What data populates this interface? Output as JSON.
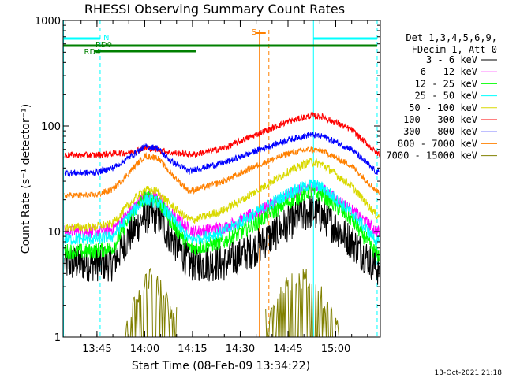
{
  "chart_data": {
    "type": "line",
    "title": "RHESSI Observing Summary Count Rates",
    "xlabel": "Start Time (08-Feb-09 13:34:22)",
    "ylabel": "Count Rate (s⁻¹ detector⁻¹)",
    "y_scale": "log",
    "ylim": [
      1,
      1000
    ],
    "xlim": [
      "13:34:22",
      "15:14:00"
    ],
    "x_ticks": [
      "13:45",
      "14:00",
      "14:15",
      "14:30",
      "14:45",
      "15:00"
    ],
    "y_ticks": [
      "1",
      "10",
      "100",
      "1000"
    ],
    "legend_header": [
      "Det 1,3,4,5,6,9,",
      "FDecim 1, Att 0"
    ],
    "legend_position": "right",
    "series": [
      {
        "name": "3 - 6 keV",
        "color": "#000000",
        "x": [
          "13:34",
          "13:44",
          "13:50",
          "13:55",
          "14:00",
          "14:04",
          "14:08",
          "14:14",
          "14:16",
          "14:25",
          "14:35",
          "14:45",
          "14:52",
          "14:56",
          "15:05",
          "15:13"
        ],
        "values": [
          5,
          5,
          5,
          9,
          14,
          14,
          9,
          5,
          5,
          5,
          7,
          12,
          15.5,
          14,
          8,
          4.5
        ]
      },
      {
        "name": "6 - 12 keV",
        "color": "#ff00ff",
        "x": [
          "13:34",
          "13:44",
          "13:50",
          "13:55",
          "14:00",
          "14:04",
          "14:08",
          "14:14",
          "14:16",
          "14:25",
          "14:35",
          "14:45",
          "14:52",
          "14:56",
          "15:05",
          "15:13"
        ],
        "values": [
          10,
          10,
          10.5,
          15,
          22,
          21,
          15,
          10.5,
          10,
          11,
          15,
          22,
          27,
          25,
          16,
          10
        ]
      },
      {
        "name": "12 - 25 keV",
        "color": "#00ff00",
        "x": [
          "13:34",
          "13:44",
          "13:50",
          "13:55",
          "14:00",
          "14:04",
          "14:08",
          "14:14",
          "14:16",
          "14:25",
          "14:35",
          "14:45",
          "14:52",
          "14:56",
          "15:05",
          "15:13"
        ],
        "values": [
          6.5,
          6.5,
          7,
          13,
          21,
          20,
          13,
          7,
          7,
          8,
          12,
          19,
          24,
          22,
          13,
          6
        ]
      },
      {
        "name": "25 - 50 keV",
        "color": "#00ffff",
        "x": [
          "13:34",
          "13:44",
          "13:50",
          "13:55",
          "14:00",
          "14:04",
          "14:08",
          "14:14",
          "14:16",
          "14:25",
          "14:35",
          "14:45",
          "14:52",
          "14:56",
          "15:05",
          "15:13"
        ],
        "values": [
          8.5,
          8.5,
          9,
          14,
          20,
          19,
          14,
          8.5,
          8.5,
          10,
          15,
          23,
          28,
          26,
          15,
          8
        ]
      },
      {
        "name": "50 - 100 keV",
        "color": "#d9d900",
        "x": [
          "13:34",
          "13:44",
          "13:50",
          "13:55",
          "14:00",
          "14:04",
          "14:08",
          "14:14",
          "14:16",
          "14:25",
          "14:35",
          "14:45",
          "14:52",
          "14:56",
          "15:05",
          "15:13"
        ],
        "values": [
          11,
          11,
          12,
          18,
          25,
          24,
          18,
          13,
          13,
          16,
          24,
          37,
          46,
          43,
          27,
          14
        ]
      },
      {
        "name": "100 - 300 keV",
        "color": "#ff0000",
        "x": [
          "13:34",
          "13:44",
          "13:50",
          "13:55",
          "14:00",
          "14:04",
          "14:08",
          "14:14",
          "14:16",
          "14:25",
          "14:35",
          "14:45",
          "14:52",
          "14:56",
          "15:05",
          "15:13"
        ],
        "values": [
          53,
          53,
          55,
          56,
          62,
          60,
          56,
          54,
          54,
          62,
          83,
          110,
          125,
          122,
          92,
          55
        ]
      },
      {
        "name": "300 - 800 keV",
        "color": "#0000ff",
        "x": [
          "13:34",
          "13:44",
          "13:50",
          "13:55",
          "14:00",
          "14:04",
          "14:08",
          "14:14",
          "14:16",
          "14:25",
          "14:35",
          "14:45",
          "14:52",
          "14:56",
          "15:05",
          "15:13"
        ],
        "values": [
          36,
          36,
          40,
          50,
          64,
          62,
          47,
          37,
          39,
          45,
          58,
          74,
          83,
          80,
          60,
          36
        ]
      },
      {
        "name": "800 - 7000 keV",
        "color": "#ff8000",
        "x": [
          "13:34",
          "13:44",
          "13:50",
          "13:55",
          "14:00",
          "14:04",
          "14:08",
          "14:14",
          "14:16",
          "14:25",
          "14:35",
          "14:45",
          "14:52",
          "14:56",
          "15:05",
          "15:13"
        ],
        "values": [
          22,
          22,
          25,
          36,
          52,
          50,
          36,
          24,
          25,
          30,
          42,
          55,
          60,
          58,
          42,
          24
        ]
      },
      {
        "name": "7000 - 15000 keV",
        "color": "#808000",
        "x": [
          "13:55",
          "13:58",
          "14:00",
          "14:03",
          "14:06",
          "14:09",
          "14:40",
          "14:43",
          "14:47",
          "14:51",
          "14:55",
          "14:59"
        ],
        "values": [
          1.5,
          2.5,
          3.5,
          3.5,
          2.5,
          1.5,
          1.5,
          2.5,
          3.5,
          3.5,
          2.5,
          1.5
        ]
      }
    ],
    "markers": {
      "N": {
        "label": "N",
        "color": "#00ffff",
        "start": "13:46"
      },
      "RD0": {
        "label": "RD0",
        "color": "#008000",
        "start": "13:45"
      },
      "RD4": {
        "label": "RD4",
        "color": "#008000",
        "start": "13:34"
      },
      "S": {
        "label": "S",
        "color": "#ff8000",
        "start": "14:36"
      }
    },
    "cyan_vlines": [
      "13:34:30",
      "13:46",
      "14:53",
      "15:13"
    ],
    "orange_vlines": [
      "14:36",
      "14:39"
    ],
    "stamp": "13-Oct-2021 21:18"
  }
}
